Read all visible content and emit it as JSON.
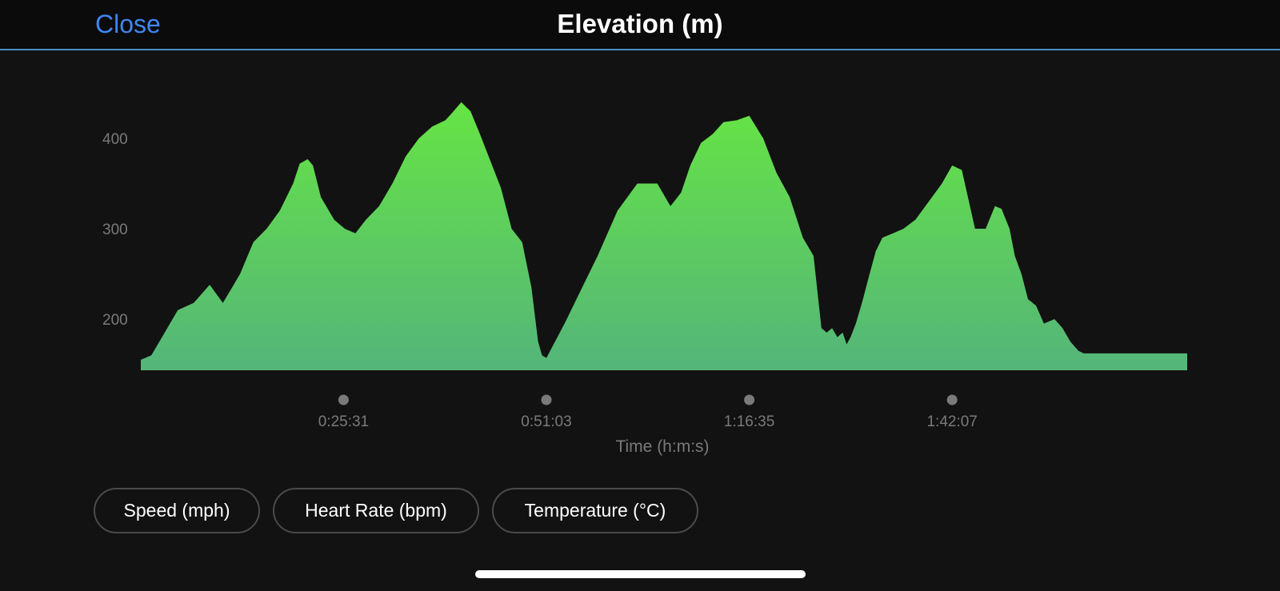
{
  "header": {
    "close_label": "Close",
    "title": "Elevation (m)"
  },
  "chart_data": {
    "type": "area",
    "title": "Elevation (m)",
    "xlabel": "Time (h:m:s)",
    "ylabel": "",
    "y_ticks": [
      "200",
      "300",
      "400"
    ],
    "x_ticks": [
      "0:25:31",
      "0:51:03",
      "1:16:35",
      "1:42:07"
    ],
    "x_tick_seconds": [
      1531,
      3063,
      4595,
      6127
    ],
    "x_range_seconds": [
      0,
      7902
    ],
    "ylim": [
      143,
      470
    ],
    "grid": false,
    "fill_colors": [
      "#66e444",
      "#54b57a"
    ],
    "x": [
      0,
      80,
      160,
      280,
      400,
      520,
      620,
      690,
      750,
      850,
      950,
      1050,
      1150,
      1200,
      1260,
      1300,
      1360,
      1460,
      1540,
      1620,
      1700,
      1800,
      1900,
      2000,
      2100,
      2200,
      2300,
      2350,
      2420,
      2490,
      2560,
      2640,
      2720,
      2800,
      2880,
      2950,
      3000,
      3030,
      3063,
      3110,
      3200,
      3300,
      3450,
      3600,
      3750,
      3900,
      4000,
      4080,
      4150,
      4230,
      4320,
      4400,
      4500,
      4595,
      4700,
      4800,
      4900,
      5000,
      5080,
      5140,
      5180,
      5220,
      5260,
      5300,
      5330,
      5360,
      5400,
      5450,
      5500,
      5550,
      5600,
      5680,
      5760,
      5850,
      5950,
      6050,
      6127,
      6200,
      6300,
      6380,
      6450,
      6500,
      6560,
      6600,
      6650,
      6700,
      6760,
      6820,
      6900,
      6960,
      7020,
      7080,
      7120,
      7200,
      7280,
      7350,
      7430,
      7500,
      7560,
      7620,
      7700,
      7780,
      7850,
      7902
    ],
    "y": [
      155,
      160,
      180,
      210,
      218,
      238,
      218,
      235,
      250,
      285,
      300,
      320,
      350,
      372,
      377,
      370,
      335,
      310,
      300,
      295,
      310,
      325,
      350,
      380,
      400,
      413,
      420,
      428,
      440,
      430,
      405,
      375,
      345,
      300,
      285,
      235,
      175,
      160,
      157,
      170,
      195,
      225,
      270,
      320,
      350,
      350,
      325,
      340,
      370,
      395,
      405,
      418,
      420,
      425,
      400,
      362,
      335,
      290,
      270,
      190,
      185,
      190,
      180,
      185,
      172,
      180,
      195,
      220,
      248,
      275,
      290,
      295,
      300,
      310,
      330,
      350,
      370,
      365,
      300,
      300,
      325,
      322,
      300,
      270,
      250,
      222,
      215,
      195,
      200,
      190,
      175,
      165,
      162,
      162,
      162,
      162,
      162,
      162,
      162,
      162,
      162,
      162,
      162,
      162
    ]
  },
  "buttons": [
    {
      "label": "Speed (mph)"
    },
    {
      "label": "Heart Rate (bpm)"
    },
    {
      "label": "Temperature (°C)"
    }
  ]
}
